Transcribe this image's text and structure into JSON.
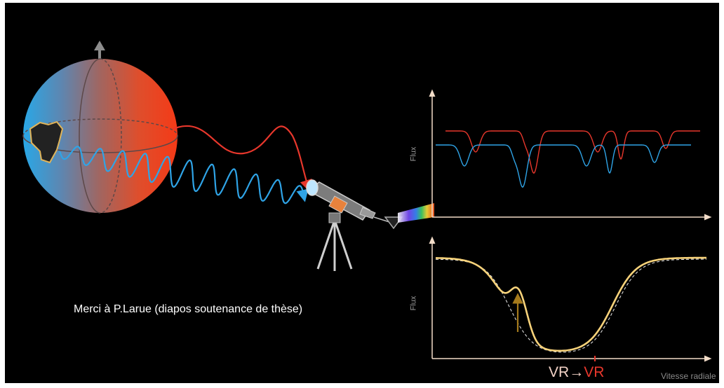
{
  "credit": "Merci à P.Larue (diapos soutenance de thèse)",
  "top_plot": {
    "ylabel": "Flux"
  },
  "bottom_plot": {
    "ylabel": "Flux",
    "vr_left": "VR",
    "vr_arrow": "→",
    "vr_right": "VR",
    "xlabel": "Vitesse radiale"
  },
  "colors": {
    "background": "#000000",
    "redshift": "#e8372c",
    "blueshift": "#2fa4e7",
    "profile": "#f7d27a",
    "axes": "#f2dcc8",
    "spot_arrow": "#a57a1c"
  },
  "icons": [
    "star-sphere-icon",
    "telescope-icon",
    "prism-icon",
    "rotation-axis-icon"
  ]
}
